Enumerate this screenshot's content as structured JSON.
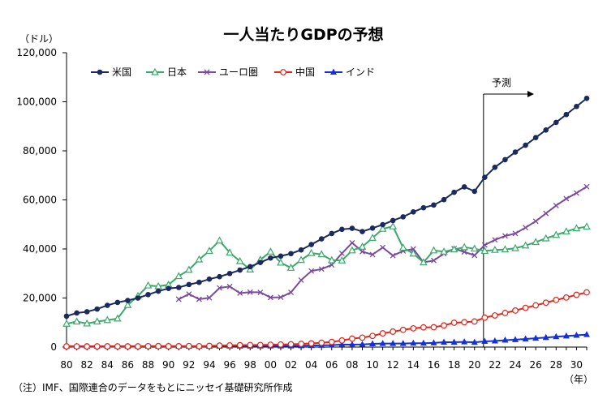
{
  "chart_data": {
    "type": "line",
    "title": "一人当たりGDPの予想",
    "unit_label": "（ドル）",
    "x_unit_label": "（年）",
    "note": "（注）IMF、国際連合のデータをもとにニッセイ基礎研究所作成",
    "forecast_label": "予測",
    "forecast_start": 2021,
    "ylim": [
      0,
      120000
    ],
    "y_ticks": [
      0,
      20000,
      40000,
      60000,
      80000,
      100000,
      120000
    ],
    "y_tick_labels": [
      "0",
      "20,000",
      "40,000",
      "60,000",
      "80,000",
      "100,000",
      "120,000"
    ],
    "xlim": [
      1980,
      2031
    ],
    "x_ticks": [
      1980,
      1982,
      1984,
      1986,
      1988,
      1990,
      1992,
      1994,
      1996,
      1998,
      2000,
      2002,
      2004,
      2006,
      2008,
      2010,
      2012,
      2014,
      2016,
      2018,
      2020,
      2022,
      2024,
      2026,
      2028,
      2030
    ],
    "x_tick_labels": [
      "80",
      "82",
      "84",
      "86",
      "88",
      "90",
      "92",
      "94",
      "96",
      "98",
      "00",
      "02",
      "04",
      "06",
      "08",
      "10",
      "12",
      "14",
      "16",
      "18",
      "20",
      "22",
      "24",
      "26",
      "28",
      "30"
    ],
    "grid": false,
    "legend_position": "top-left",
    "series": [
      {
        "name": "米国",
        "color": "#1b2a5c",
        "marker": "circle",
        "start": 1980,
        "values": [
          12600,
          13900,
          14400,
          15500,
          17000,
          18200,
          19000,
          20000,
          21400,
          22800,
          23900,
          24300,
          25500,
          26400,
          27700,
          28700,
          30000,
          31400,
          32800,
          34500,
          36300,
          37100,
          38100,
          39600,
          41800,
          44100,
          46300,
          48000,
          48400,
          47100,
          48500,
          49900,
          51600,
          53100,
          55100,
          56800,
          57900,
          60100,
          63100,
          65300,
          63500,
          69200,
          73300,
          76400,
          79500,
          82300,
          85400,
          88500,
          91600,
          94800,
          98100,
          101400
        ]
      },
      {
        "name": "日本",
        "color": "#3aaa6a",
        "marker": "triangle",
        "start": 1980,
        "values": [
          9500,
          10400,
          9600,
          10400,
          11000,
          11600,
          17100,
          20800,
          25100,
          24800,
          25400,
          28900,
          31500,
          35700,
          39200,
          43400,
          38500,
          35000,
          31600,
          35600,
          38900,
          34400,
          32300,
          35500,
          38300,
          37800,
          35400,
          35300,
          39400,
          40900,
          44500,
          48200,
          49200,
          40500,
          38100,
          34500,
          39400,
          38900,
          39800,
          40700,
          40100,
          39200,
          39600,
          39800,
          40300,
          41400,
          42800,
          44300,
          45700,
          47100,
          48400,
          49100
        ]
      },
      {
        "name": "ユーロ圏",
        "color": "#7b4a9e",
        "marker": "x",
        "start": 1991,
        "values": [
          19500,
          21600,
          19500,
          20100,
          24100,
          24700,
          22000,
          22400,
          22300,
          20200,
          20300,
          22300,
          27300,
          31000,
          31800,
          33500,
          38200,
          42500,
          38900,
          37700,
          40600,
          37300,
          39200,
          40000,
          34500,
          35300,
          38100,
          40100,
          38800,
          37400,
          41600,
          43700,
          45300,
          46300,
          48700,
          51300,
          54500,
          57700,
          60500,
          62800,
          65400
        ]
      },
      {
        "name": "中国",
        "color": "#e0261b",
        "marker": "open-circle",
        "start": 1980,
        "values": [
          310,
          290,
          280,
          300,
          310,
          290,
          280,
          300,
          370,
          400,
          350,
          360,
          420,
          380,
          480,
          610,
          710,
          780,
          830,
          870,
          960,
          1050,
          1150,
          1300,
          1510,
          1750,
          2100,
          2700,
          3450,
          3850,
          4550,
          5600,
          6300,
          7020,
          7640,
          8030,
          8090,
          8820,
          9910,
          10140,
          10430,
          12000,
          12900,
          13900,
          14900,
          16000,
          17000,
          18100,
          19200,
          20200,
          21300,
          22300
        ]
      },
      {
        "name": "インド",
        "color": "#1530d9",
        "marker": "filled-triangle",
        "start": 1980,
        "values": [
          270,
          270,
          270,
          270,
          280,
          290,
          300,
          330,
          340,
          340,
          370,
          310,
          320,
          300,
          330,
          370,
          400,
          410,
          410,
          440,
          440,
          450,
          470,
          540,
          620,
          710,
          800,
          1020,
          990,
          1090,
          1340,
          1460,
          1440,
          1450,
          1570,
          1590,
          1710,
          1980,
          1970,
          2100,
          1930,
          2300,
          2500,
          2800,
          3000,
          3300,
          3600,
          3900,
          4200,
          4500,
          4800,
          5100
        ]
      }
    ]
  }
}
